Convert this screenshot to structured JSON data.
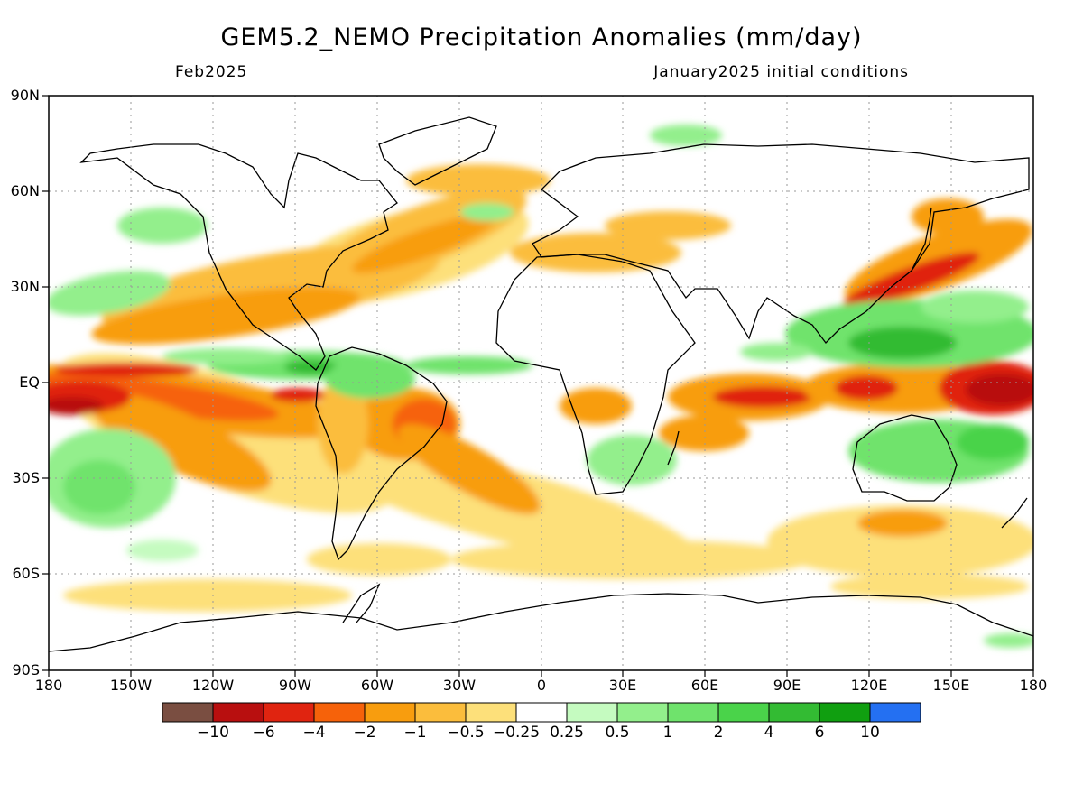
{
  "title": "GEM5.2_NEMO Precipitation Anomalies (mm/day)",
  "valid_month": "Feb2025",
  "init_label": "January2025 initial conditions",
  "lat_labels": [
    "90N",
    "60N",
    "30N",
    "EQ",
    "30S",
    "60S",
    "90S"
  ],
  "lon_labels": [
    "180",
    "150W",
    "120W",
    "90W",
    "60W",
    "30W",
    "0",
    "30E",
    "60E",
    "90E",
    "120E",
    "150E",
    "180"
  ],
  "colorbar": {
    "colors": [
      "#7a4e41",
      "#b80f0f",
      "#e02410",
      "#f6620a",
      "#f89d0e",
      "#fbbd3c",
      "#fde07a",
      "#ffffff",
      "#c5fbc0",
      "#93ef8c",
      "#6fe36c",
      "#4ad34a",
      "#33bb33",
      "#109f10",
      "#2470f2"
    ],
    "labels": [
      "−10",
      "−6",
      "−4",
      "−2",
      "−1",
      "−0.5",
      "−0.25",
      "0.25",
      "0.5",
      "1",
      "2",
      "4",
      "6",
      "10"
    ]
  }
}
